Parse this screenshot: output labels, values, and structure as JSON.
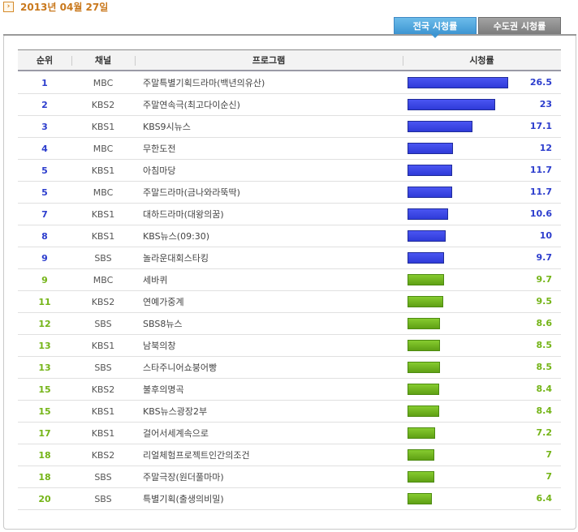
{
  "header": {
    "date": "2013년 04월 27일",
    "date_icon": "arrow-right-icon"
  },
  "tabs": [
    {
      "label": "전국 시청률",
      "active": true
    },
    {
      "label": "수도권 시청률",
      "active": false
    }
  ],
  "table": {
    "columns": {
      "rank": "순위",
      "channel": "채널",
      "program": "프로그램",
      "rating": "시청률"
    },
    "colors": {
      "blue": "#2f3bd8",
      "green": "#6db21a"
    },
    "rating_max": 26.5,
    "rows": [
      {
        "rank": "1",
        "channel": "MBC",
        "program": "주말특별기획드라마(백년의유산)",
        "rating": "26.5",
        "color": "blue"
      },
      {
        "rank": "2",
        "channel": "KBS2",
        "program": "주말연속극(최고다이순신)",
        "rating": "23",
        "color": "blue"
      },
      {
        "rank": "3",
        "channel": "KBS1",
        "program": "KBS9시뉴스",
        "rating": "17.1",
        "color": "blue"
      },
      {
        "rank": "4",
        "channel": "MBC",
        "program": "무한도전",
        "rating": "12",
        "color": "blue"
      },
      {
        "rank": "5",
        "channel": "KBS1",
        "program": "아침마당",
        "rating": "11.7",
        "color": "blue"
      },
      {
        "rank": "5",
        "channel": "MBC",
        "program": "주말드라마(금나와라뚝딱)",
        "rating": "11.7",
        "color": "blue"
      },
      {
        "rank": "7",
        "channel": "KBS1",
        "program": "대하드라마(대왕의꿈)",
        "rating": "10.6",
        "color": "blue"
      },
      {
        "rank": "8",
        "channel": "KBS1",
        "program": "KBS뉴스(09:30)",
        "rating": "10",
        "color": "blue"
      },
      {
        "rank": "9",
        "channel": "SBS",
        "program": "놀라운대회스타킹",
        "rating": "9.7",
        "color": "blue"
      },
      {
        "rank": "9",
        "channel": "MBC",
        "program": "세바퀴",
        "rating": "9.7",
        "color": "green"
      },
      {
        "rank": "11",
        "channel": "KBS2",
        "program": "연예가중계",
        "rating": "9.5",
        "color": "green"
      },
      {
        "rank": "12",
        "channel": "SBS",
        "program": "SBS8뉴스",
        "rating": "8.6",
        "color": "green"
      },
      {
        "rank": "13",
        "channel": "KBS1",
        "program": "남북의창",
        "rating": "8.5",
        "color": "green"
      },
      {
        "rank": "13",
        "channel": "SBS",
        "program": "스타주니어쇼붕어빵",
        "rating": "8.5",
        "color": "green"
      },
      {
        "rank": "15",
        "channel": "KBS2",
        "program": "불후의명곡",
        "rating": "8.4",
        "color": "green"
      },
      {
        "rank": "15",
        "channel": "KBS1",
        "program": "KBS뉴스광장2부",
        "rating": "8.4",
        "color": "green"
      },
      {
        "rank": "17",
        "channel": "KBS1",
        "program": "걸어서세계속으로",
        "rating": "7.2",
        "color": "green"
      },
      {
        "rank": "18",
        "channel": "KBS2",
        "program": "리얼체험프로젝트인간의조건",
        "rating": "7",
        "color": "green"
      },
      {
        "rank": "18",
        "channel": "SBS",
        "program": "주말극장(원더풀마마)",
        "rating": "7",
        "color": "green"
      },
      {
        "rank": "20",
        "channel": "SBS",
        "program": "특별기획(출생의비밀)",
        "rating": "6.4",
        "color": "green"
      }
    ]
  }
}
